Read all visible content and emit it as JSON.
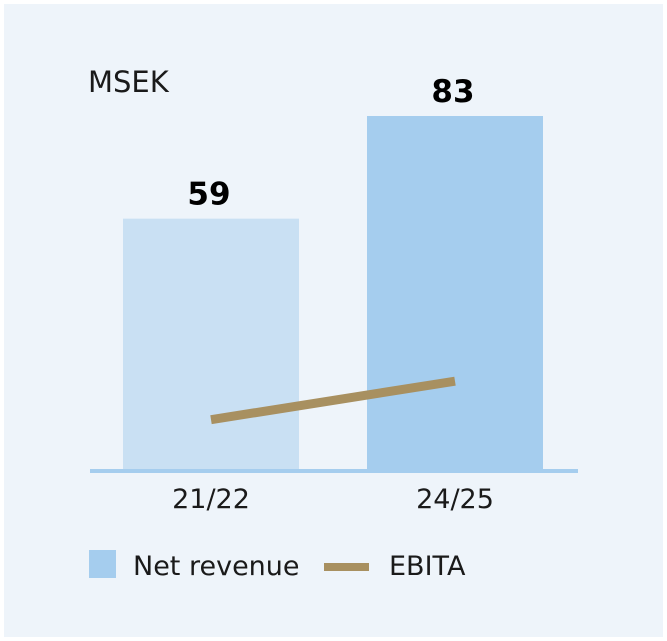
{
  "chart_data": {
    "type": "bar",
    "unit_label": "MSEK",
    "categories": [
      "21/22",
      "24/25"
    ],
    "series": [
      {
        "name": "Net revenue",
        "type": "bar",
        "values": [
          59,
          83
        ],
        "colors": [
          "#c9e0f3",
          "#a5cdee"
        ]
      },
      {
        "name": "EBITA",
        "type": "line",
        "values": [
          12,
          21
        ],
        "color": "#a89060"
      }
    ],
    "data_labels": [
      "59",
      "83"
    ],
    "ylim": [
      0,
      90
    ],
    "grid": false,
    "legend_position": "bottom-left",
    "axis_color": "#a5cdee",
    "background": "#eef4fa"
  }
}
